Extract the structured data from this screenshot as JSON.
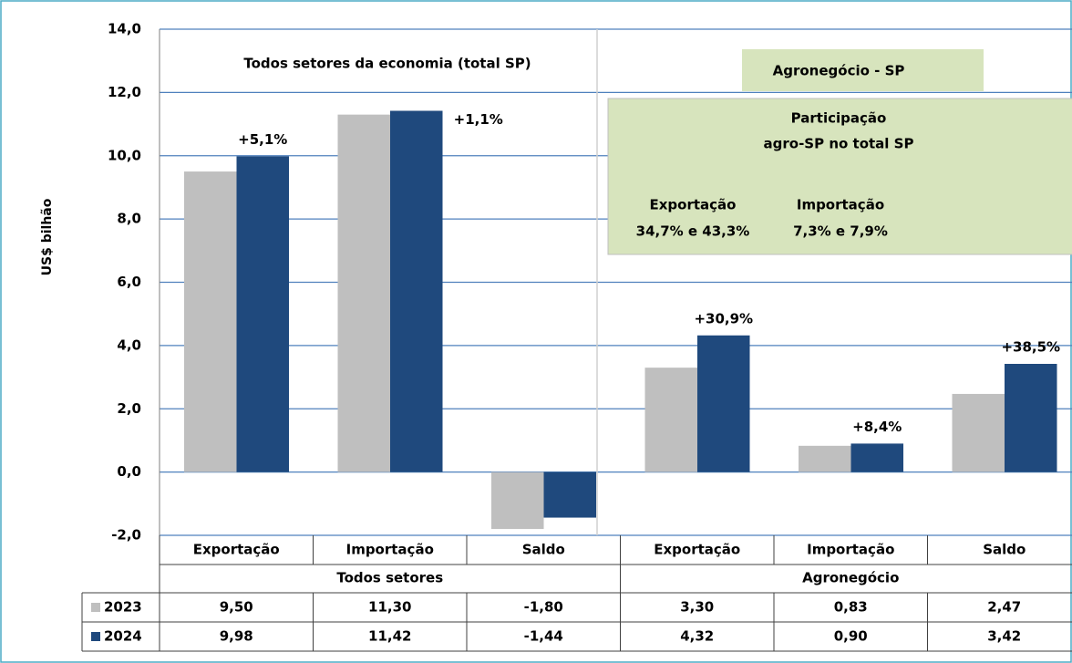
{
  "chart_data": {
    "type": "bar",
    "y_label": "US$  bilhão",
    "ylim": [
      -2,
      14
    ],
    "yticks": [
      {
        "value": -2,
        "label": "-2,0"
      },
      {
        "value": 0,
        "label": "0,0"
      },
      {
        "value": 2,
        "label": "2,0"
      },
      {
        "value": 4,
        "label": "4,0"
      },
      {
        "value": 6,
        "label": "6,0"
      },
      {
        "value": 8,
        "label": "8,0"
      },
      {
        "value": 10,
        "label": "10,0"
      },
      {
        "value": 12,
        "label": "12,0"
      },
      {
        "value": 14,
        "label": "14,0"
      }
    ],
    "grid": true,
    "categories": [
      "Exportação",
      "Importação",
      "Saldo",
      "Exportação",
      "Importação",
      "Saldo"
    ],
    "groups": [
      "Todos setores",
      "Agronegócio"
    ],
    "series": [
      {
        "name": "2023",
        "color": "#bfbfbf",
        "values": [
          9.5,
          11.3,
          -1.8,
          3.3,
          0.83,
          2.47
        ],
        "value_labels": [
          "9,50",
          "11,30",
          "-1,80",
          "3,30",
          "0,83",
          "2,47"
        ]
      },
      {
        "name": "2024",
        "color": "#1f497d",
        "values": [
          9.98,
          11.42,
          -1.44,
          4.32,
          0.9,
          3.42
        ],
        "value_labels": [
          "9,98",
          "11,42",
          "-1,44",
          "4,32",
          "0,90",
          "3,42"
        ]
      }
    ],
    "change_labels": [
      "+5,1%",
      "+1,1%",
      null,
      "+30,9%",
      "+8,4%",
      "+38,5%"
    ],
    "panel_title_total": "Todos setores da economia (total SP)",
    "panel_title_agro": "Agronegócio - SP",
    "share_box": {
      "title_1": "Participação",
      "title_2": "agro-SP no total SP",
      "export_label": "Exportação",
      "export_value": "34,7% e 43,3%",
      "import_label": "Importação",
      "import_value": "7,3% e 7,9%"
    }
  }
}
